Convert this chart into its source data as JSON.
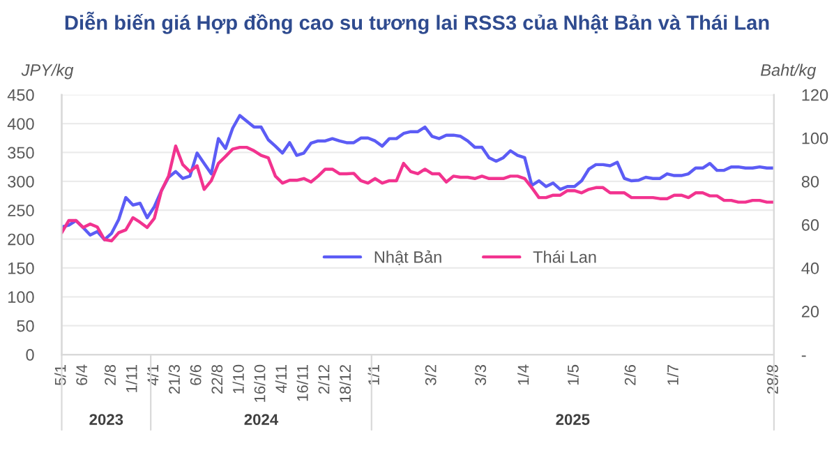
{
  "chart_data": {
    "type": "line",
    "title": "Diễn biến giá Hợp đồng cao su tương lai RSS3 của Nhật Bản và Thái Lan",
    "ylabel": "JPY/kg",
    "y2label": "Baht/kg",
    "categories": [
      "5/1",
      null,
      null,
      "6/4",
      null,
      null,
      null,
      "2/8",
      null,
      null,
      "1/11",
      null,
      null,
      "4/1",
      null,
      null,
      "21/3",
      null,
      null,
      "6/6",
      null,
      null,
      "22/8",
      null,
      null,
      "1/10",
      null,
      null,
      "16/10",
      null,
      null,
      "4/11",
      null,
      null,
      "16/11",
      null,
      null,
      "2/12",
      null,
      null,
      "18/12",
      null,
      null,
      null,
      "1/1",
      null,
      null,
      null,
      null,
      null,
      null,
      null,
      "3/2",
      null,
      null,
      null,
      null,
      null,
      null,
      "3/3",
      null,
      null,
      null,
      null,
      null,
      "1/4",
      null,
      null,
      null,
      null,
      null,
      null,
      "1/5",
      null,
      null,
      null,
      null,
      null,
      null,
      null,
      "2/6",
      null,
      null,
      null,
      null,
      null,
      "1/7",
      null,
      null,
      null,
      null,
      null,
      null,
      null,
      null,
      null,
      null,
      null,
      null,
      null,
      "28/8"
    ],
    "series": [
      {
        "name": "Nhật Bản",
        "color": "#5c5cf5",
        "values": [
          221,
          224,
          232,
          220,
          207,
          213,
          199,
          210,
          234,
          272,
          259,
          262,
          237,
          256,
          284,
          307,
          317,
          305,
          309,
          349,
          331,
          313,
          374,
          357,
          392,
          414,
          404,
          394,
          394,
          372,
          361,
          349,
          367,
          345,
          349,
          366,
          370,
          370,
          374,
          370,
          367,
          367,
          375,
          375,
          370,
          361,
          374,
          374,
          383,
          386,
          386,
          394,
          378,
          374,
          380,
          380,
          378,
          370,
          359,
          359,
          341,
          335,
          341,
          353,
          345,
          341,
          293,
          301,
          291,
          297,
          286,
          291,
          291,
          301,
          321,
          329,
          329,
          327,
          333,
          305,
          301,
          302,
          307,
          305,
          305,
          313,
          310,
          310,
          313,
          323,
          323,
          331,
          319,
          319,
          325,
          325,
          323,
          323,
          325,
          323,
          323
        ]
      },
      {
        "name": "Thái Lan",
        "color": "#f2338f",
        "axis": "y2",
        "values": [
          56.3,
          61.9,
          61.9,
          58.7,
          60.3,
          58.9,
          53.1,
          52.5,
          56.3,
          57.6,
          63.2,
          61.1,
          58.7,
          62.9,
          75.7,
          82.4,
          96.3,
          87.7,
          84.5,
          87.2,
          76.3,
          80.3,
          88.3,
          91.5,
          94.9,
          95.7,
          95.7,
          94.1,
          92.0,
          90.9,
          82.4,
          79.2,
          80.5,
          80.5,
          81.3,
          79.7,
          82.4,
          85.6,
          85.6,
          83.5,
          83.5,
          83.7,
          80.3,
          79.2,
          81.3,
          79.2,
          80.3,
          80.3,
          88.3,
          84.5,
          83.5,
          85.6,
          83.5,
          83.5,
          79.7,
          82.4,
          81.9,
          81.9,
          81.3,
          82.4,
          81.3,
          81.3,
          81.3,
          82.4,
          82.4,
          81.3,
          77.1,
          72.5,
          72.5,
          73.6,
          73.6,
          75.7,
          75.7,
          74.7,
          76.3,
          77.1,
          77.1,
          74.7,
          74.7,
          74.7,
          72.5,
          72.5,
          72.5,
          72.5,
          72.0,
          72.0,
          73.6,
          73.6,
          72.5,
          74.7,
          74.7,
          73.3,
          73.3,
          71.2,
          71.2,
          70.4,
          70.4,
          71.2,
          71.2,
          70.4,
          70.4
        ]
      }
    ],
    "annotations": [
      "2023",
      "2024",
      "2025"
    ],
    "ylim": [
      0,
      450
    ],
    "yticks": [
      0,
      50,
      100,
      150,
      200,
      250,
      300,
      350,
      400,
      450
    ],
    "y2lim": [
      0,
      120
    ],
    "y2ticks": [
      {
        "value": 0,
        "label": "-"
      },
      20,
      40,
      60,
      80,
      100,
      120
    ],
    "grid": "y",
    "legend": "center",
    "marker": "none",
    "line_style": "solid"
  }
}
